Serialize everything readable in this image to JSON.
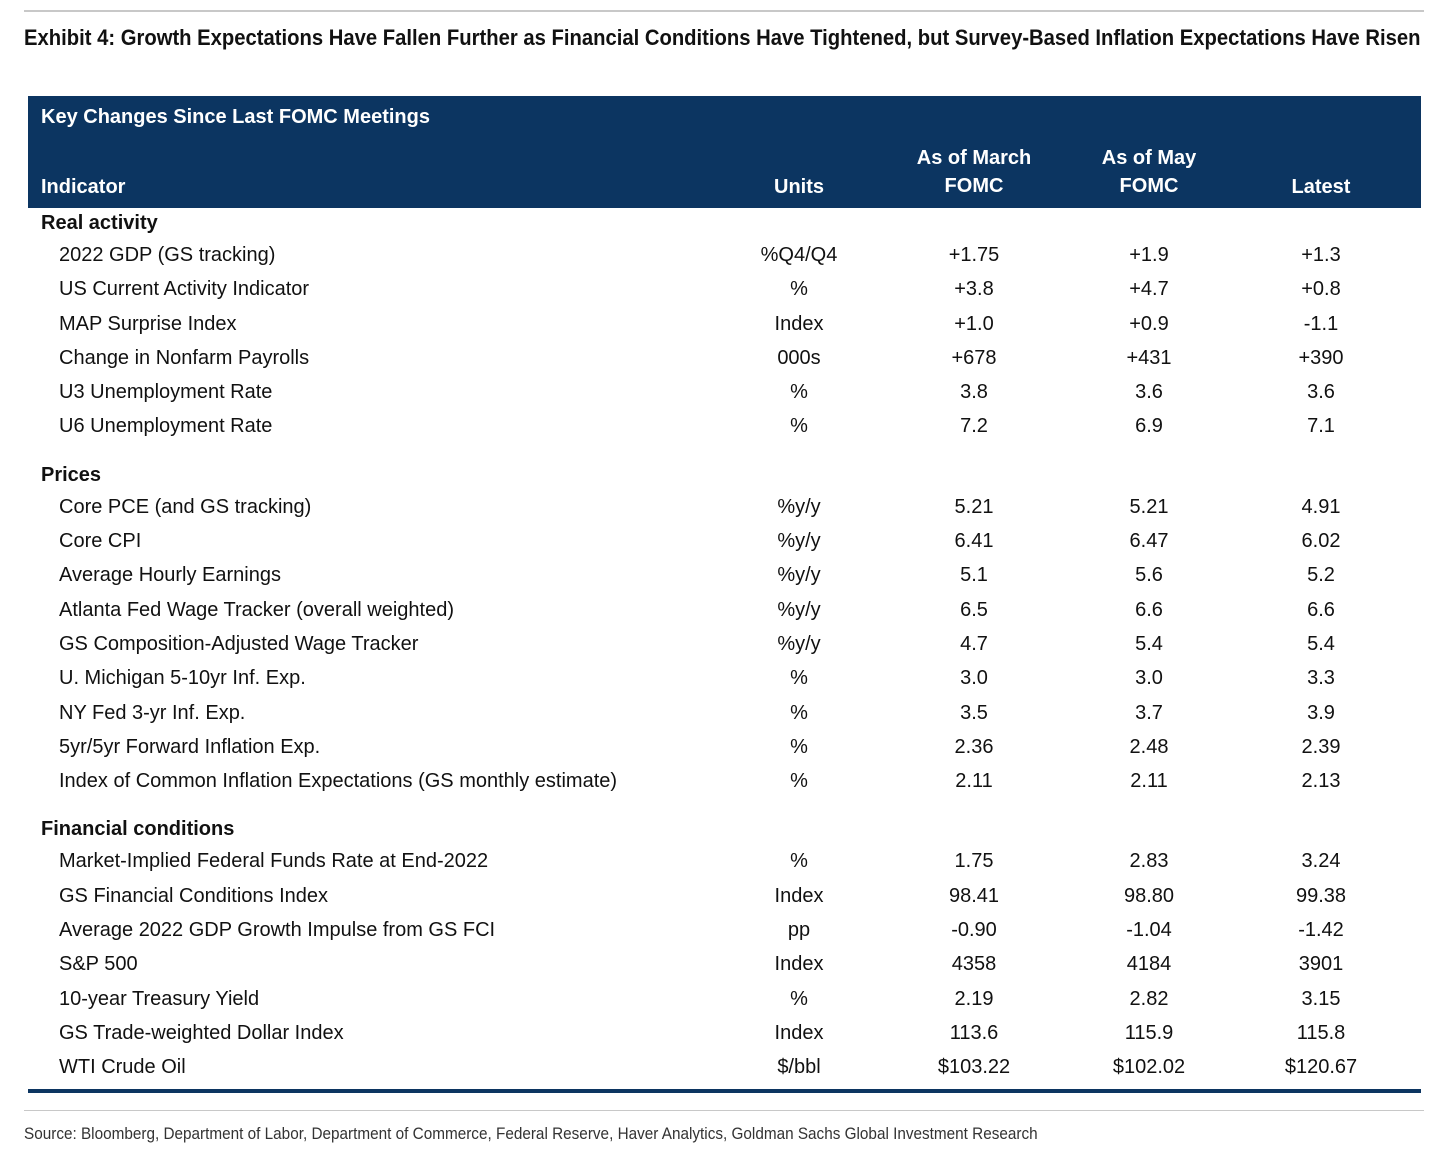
{
  "title": "Exhibit 4: Growth Expectations Have Fallen Further as Financial Conditions Have Tightened, but Survey-Based Inflation Expectations Have Risen",
  "table": {
    "subtitle": "Key Changes Since Last FOMC Meetings",
    "columns": {
      "indicator": "Indicator",
      "units": "Units",
      "march": "As of March FOMC",
      "may": "As of May FOMC",
      "latest": "Latest"
    },
    "sections": [
      {
        "title": "Real activity",
        "rows": [
          {
            "indicator": "2022 GDP (GS tracking)",
            "units": "%Q4/Q4",
            "march": "+1.75",
            "may": "+1.9",
            "latest": "+1.3"
          },
          {
            "indicator": "US Current Activity Indicator",
            "units": "%",
            "march": "+3.8",
            "may": "+4.7",
            "latest": "+0.8"
          },
          {
            "indicator": "MAP Surprise Index",
            "units": "Index",
            "march": "+1.0",
            "may": "+0.9",
            "latest": "-1.1"
          },
          {
            "indicator": "Change in Nonfarm Payrolls",
            "units": "000s",
            "march": "+678",
            "may": "+431",
            "latest": "+390"
          },
          {
            "indicator": "U3 Unemployment Rate",
            "units": "%",
            "march": "3.8",
            "may": "3.6",
            "latest": "3.6"
          },
          {
            "indicator": "U6 Unemployment Rate",
            "units": "%",
            "march": "7.2",
            "may": "6.9",
            "latest": "7.1"
          }
        ]
      },
      {
        "title": "Prices",
        "rows": [
          {
            "indicator": "Core PCE (and GS tracking)",
            "units": "%y/y",
            "march": "5.21",
            "may": "5.21",
            "latest": "4.91"
          },
          {
            "indicator": "Core CPI",
            "units": "%y/y",
            "march": "6.41",
            "may": "6.47",
            "latest": "6.02"
          },
          {
            "indicator": "Average Hourly Earnings",
            "units": "%y/y",
            "march": "5.1",
            "may": "5.6",
            "latest": "5.2"
          },
          {
            "indicator": "Atlanta Fed Wage Tracker (overall weighted)",
            "units": "%y/y",
            "march": "6.5",
            "may": "6.6",
            "latest": "6.6"
          },
          {
            "indicator": "GS Composition-Adjusted Wage Tracker",
            "units": "%y/y",
            "march": "4.7",
            "may": "5.4",
            "latest": "5.4"
          },
          {
            "indicator": "U. Michigan 5-10yr Inf. Exp.",
            "units": "%",
            "march": "3.0",
            "may": "3.0",
            "latest": "3.3"
          },
          {
            "indicator": "NY Fed 3-yr Inf. Exp.",
            "units": "%",
            "march": "3.5",
            "may": "3.7",
            "latest": "3.9"
          },
          {
            "indicator": "5yr/5yr Forward Inflation Exp.",
            "units": "%",
            "march": "2.36",
            "may": "2.48",
            "latest": "2.39"
          },
          {
            "indicator": "Index of Common Inflation Expectations (GS monthly estimate)",
            "units": "%",
            "march": "2.11",
            "may": "2.11",
            "latest": "2.13"
          }
        ]
      },
      {
        "title": "Financial conditions",
        "rows": [
          {
            "indicator": "Market-Implied Federal Funds Rate at End-2022",
            "units": "%",
            "march": "1.75",
            "may": "2.83",
            "latest": "3.24"
          },
          {
            "indicator": "GS Financial Conditions Index",
            "units": "Index",
            "march": "98.41",
            "may": "98.80",
            "latest": "99.38"
          },
          {
            "indicator": "Average 2022 GDP Growth Impulse from GS FCI",
            "units": "pp",
            "march": "-0.90",
            "may": "-1.04",
            "latest": "-1.42"
          },
          {
            "indicator": "S&P 500",
            "units": "Index",
            "march": "4358",
            "may": "4184",
            "latest": "3901"
          },
          {
            "indicator": "10-year Treasury Yield",
            "units": "%",
            "march": "2.19",
            "may": "2.82",
            "latest": "3.15"
          },
          {
            "indicator": "GS Trade-weighted Dollar Index",
            "units": "Index",
            "march": "113.6",
            "may": "115.9",
            "latest": "115.8"
          },
          {
            "indicator": "WTI Crude Oil",
            "units": "$/bbl",
            "march": "$103.22",
            "may": "$102.02",
            "latest": "$120.67"
          }
        ]
      }
    ]
  },
  "source": "Source: Bloomberg, Department of Labor, Department of Commerce, Federal Reserve, Haver Analytics, Goldman Sachs Global Investment Research"
}
